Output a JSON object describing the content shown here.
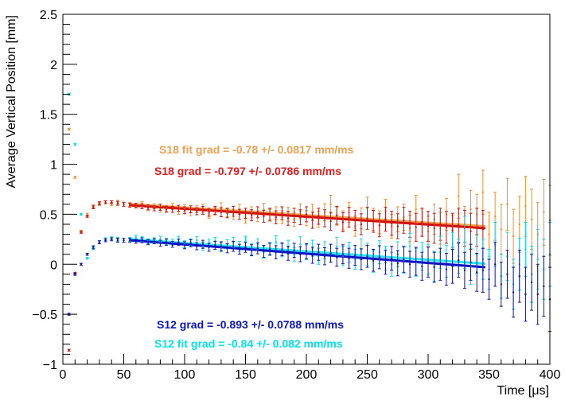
{
  "chart_data": {
    "type": "scatter",
    "title": "",
    "xlabel": "Time [μs]",
    "ylabel": "Average Vertical Position [mm]",
    "xlim": [
      0,
      400
    ],
    "ylim": [
      -1,
      2.5
    ],
    "x_ticks": [
      "0",
      "50",
      "100",
      "150",
      "200",
      "250",
      "300",
      "350",
      "400"
    ],
    "y_ticks": [
      "−1",
      "−0.5",
      "0",
      "0.5",
      "1",
      "1.5",
      "2",
      "2.5"
    ],
    "grid": false,
    "legend": "none",
    "annotations": [
      {
        "id": "s18fit",
        "text": "S18 fit grad = -0.78 +/- 0.0817 mm/ms",
        "color": "#f0a050"
      },
      {
        "id": "s18",
        "text": "S18 grad = -0.797 +/- 0.0786 mm/ms",
        "color": "#e41a1c"
      },
      {
        "id": "s12",
        "text": "S12 grad = -0.893 +/- 0.0788 mm/ms",
        "color": "#0a16c8"
      },
      {
        "id": "s12fit",
        "text": "S12 fit grad = -0.84 +/- 0.082 mm/ms",
        "color": "#00e5ee"
      }
    ],
    "series": [
      {
        "id": "s18fit",
        "color": "#f09030",
        "x": [
          5,
          10,
          15,
          20,
          25,
          30,
          35,
          40,
          45,
          50,
          55,
          60,
          65,
          70,
          75,
          80,
          85,
          90,
          95,
          100,
          105,
          110,
          115,
          120,
          125,
          130,
          135,
          140,
          145,
          150,
          155,
          160,
          165,
          170,
          175,
          180,
          185,
          190,
          195,
          200,
          205,
          210,
          215,
          220,
          225,
          230,
          235,
          240,
          245,
          250,
          255,
          260,
          265,
          270,
          275,
          280,
          285,
          290,
          295,
          300,
          305,
          310,
          315,
          320,
          325,
          330,
          335,
          340,
          345,
          350,
          355,
          360,
          365,
          370,
          375,
          380,
          385,
          390,
          395,
          400
        ],
        "y": [
          1.35,
          0.87,
          0.33,
          0.5,
          0.58,
          0.6,
          0.62,
          0.6,
          0.62,
          0.6,
          0.6,
          0.58,
          0.6,
          0.56,
          0.58,
          0.55,
          0.56,
          0.58,
          0.53,
          0.56,
          0.52,
          0.55,
          0.56,
          0.5,
          0.53,
          0.57,
          0.52,
          0.5,
          0.55,
          0.46,
          0.52,
          0.48,
          0.55,
          0.49,
          0.51,
          0.47,
          0.5,
          0.45,
          0.53,
          0.46,
          0.52,
          0.45,
          0.52,
          0.6,
          0.48,
          0.44,
          0.52,
          0.38,
          0.46,
          0.56,
          0.45,
          0.42,
          0.53,
          0.38,
          0.45,
          0.47,
          0.36,
          0.55,
          0.42,
          0.33,
          0.45,
          0.36,
          0.5,
          0.32,
          0.68,
          0.4,
          0.55,
          0.5,
          0.72,
          0.3,
          0.48,
          0.35,
          0.6,
          0.28,
          0.4,
          0.58,
          0.45,
          0.3,
          0.52,
          0.44
        ],
        "err": [
          0.01,
          0.01,
          0.01,
          0.01,
          0.015,
          0.015,
          0.015,
          0.015,
          0.02,
          0.02,
          0.02,
          0.02,
          0.025,
          0.025,
          0.025,
          0.03,
          0.03,
          0.03,
          0.03,
          0.035,
          0.035,
          0.035,
          0.04,
          0.04,
          0.04,
          0.045,
          0.045,
          0.05,
          0.05,
          0.05,
          0.055,
          0.055,
          0.06,
          0.06,
          0.065,
          0.065,
          0.07,
          0.07,
          0.075,
          0.075,
          0.08,
          0.08,
          0.085,
          0.09,
          0.09,
          0.095,
          0.1,
          0.1,
          0.105,
          0.11,
          0.11,
          0.115,
          0.12,
          0.12,
          0.125,
          0.13,
          0.13,
          0.14,
          0.14,
          0.15,
          0.15,
          0.16,
          0.16,
          0.17,
          0.22,
          0.18,
          0.19,
          0.2,
          0.22,
          0.22,
          0.24,
          0.25,
          0.26,
          0.27,
          0.28,
          0.3,
          0.3,
          0.32,
          0.33,
          0.35
        ]
      },
      {
        "id": "s18",
        "color": "#d01010",
        "x": [
          5,
          10,
          15,
          20,
          25,
          30,
          35,
          40,
          45,
          50,
          55,
          60,
          65,
          70,
          75,
          80,
          85,
          90,
          95,
          100,
          105,
          110,
          115,
          120,
          125,
          130,
          135,
          140,
          145,
          150,
          155,
          160,
          165,
          170,
          175,
          180,
          185,
          190,
          195,
          200,
          205,
          210,
          215,
          220,
          225,
          230,
          235,
          240,
          245,
          250,
          255,
          260,
          265,
          270,
          275,
          280,
          285,
          290,
          295,
          300,
          305,
          310,
          315,
          320,
          325,
          330,
          335,
          340,
          345
        ],
        "y": [
          -0.86,
          -0.09,
          0.32,
          0.48,
          0.57,
          0.61,
          0.62,
          0.62,
          0.61,
          0.6,
          0.59,
          0.59,
          0.58,
          0.57,
          0.56,
          0.57,
          0.55,
          0.55,
          0.56,
          0.54,
          0.55,
          0.53,
          0.54,
          0.52,
          0.54,
          0.52,
          0.51,
          0.53,
          0.5,
          0.51,
          0.49,
          0.52,
          0.48,
          0.5,
          0.47,
          0.51,
          0.46,
          0.49,
          0.47,
          0.5,
          0.44,
          0.48,
          0.46,
          0.43,
          0.49,
          0.42,
          0.47,
          0.44,
          0.4,
          0.46,
          0.43,
          0.39,
          0.45,
          0.41,
          0.38,
          0.44,
          0.4,
          0.37,
          0.42,
          0.38,
          0.36,
          0.4,
          0.37,
          0.34,
          0.39,
          0.36,
          0.33,
          0.37,
          0.35
        ],
        "err": [
          0.01,
          0.01,
          0.01,
          0.01,
          0.015,
          0.015,
          0.015,
          0.015,
          0.02,
          0.02,
          0.02,
          0.02,
          0.025,
          0.025,
          0.025,
          0.03,
          0.03,
          0.03,
          0.03,
          0.035,
          0.035,
          0.035,
          0.04,
          0.04,
          0.04,
          0.045,
          0.045,
          0.05,
          0.05,
          0.05,
          0.055,
          0.055,
          0.06,
          0.06,
          0.065,
          0.065,
          0.07,
          0.07,
          0.075,
          0.075,
          0.08,
          0.08,
          0.085,
          0.09,
          0.09,
          0.095,
          0.1,
          0.1,
          0.105,
          0.11,
          0.11,
          0.115,
          0.12,
          0.12,
          0.125,
          0.13,
          0.13,
          0.14,
          0.14,
          0.15,
          0.15,
          0.16,
          0.16,
          0.17,
          0.17,
          0.18,
          0.18,
          0.19,
          0.19
        ]
      },
      {
        "id": "s12fit",
        "color": "#00d8e8",
        "x": [
          5,
          10,
          15,
          20,
          25,
          30,
          35,
          40,
          45,
          50,
          55,
          60,
          65,
          70,
          75,
          80,
          85,
          90,
          95,
          100,
          105,
          110,
          115,
          120,
          125,
          130,
          135,
          140,
          145,
          150,
          155,
          160,
          165,
          170,
          175,
          180,
          185,
          190,
          195,
          200,
          205,
          210,
          215,
          220,
          225,
          230,
          235,
          240,
          245,
          250,
          255,
          260,
          265,
          270,
          275,
          280,
          285,
          290,
          295,
          300,
          305,
          310,
          315,
          320,
          325,
          330,
          335,
          340,
          345,
          350,
          355,
          360,
          365,
          370,
          375,
          380,
          385,
          390,
          395,
          400
        ],
        "y": [
          1.7,
          1.2,
          0.5,
          0.06,
          0.16,
          0.22,
          0.25,
          0.26,
          0.25,
          0.24,
          0.25,
          0.27,
          0.25,
          0.23,
          0.24,
          0.25,
          0.23,
          0.22,
          0.25,
          0.2,
          0.22,
          0.24,
          0.18,
          0.21,
          0.23,
          0.17,
          0.2,
          0.22,
          0.18,
          0.23,
          0.15,
          0.2,
          0.12,
          0.16,
          0.22,
          0.14,
          0.17,
          0.1,
          0.2,
          0.12,
          0.16,
          0.08,
          0.14,
          0.11,
          0.18,
          0.08,
          0.12,
          0.05,
          0.15,
          0.1,
          0.03,
          0.12,
          0.06,
          0.0,
          0.1,
          0.04,
          0.18,
          0.02,
          0.08,
          0.05,
          -0.02,
          0.12,
          0.03,
          0.15,
          0.08,
          0.22,
          -0.02,
          0.1,
          0.05,
          -0.05,
          0.2,
          -0.12,
          0.08,
          -0.2,
          0.0,
          0.15,
          -0.1,
          0.05,
          -0.05,
          0.1
        ],
        "err": [
          0.01,
          0.01,
          0.01,
          0.01,
          0.015,
          0.015,
          0.015,
          0.015,
          0.02,
          0.02,
          0.02,
          0.02,
          0.025,
          0.025,
          0.025,
          0.03,
          0.03,
          0.03,
          0.03,
          0.035,
          0.035,
          0.035,
          0.04,
          0.04,
          0.04,
          0.045,
          0.045,
          0.05,
          0.05,
          0.05,
          0.055,
          0.055,
          0.06,
          0.06,
          0.065,
          0.065,
          0.07,
          0.07,
          0.075,
          0.075,
          0.08,
          0.08,
          0.085,
          0.09,
          0.09,
          0.095,
          0.1,
          0.1,
          0.105,
          0.11,
          0.11,
          0.115,
          0.12,
          0.12,
          0.125,
          0.13,
          0.13,
          0.14,
          0.14,
          0.15,
          0.15,
          0.16,
          0.16,
          0.17,
          0.17,
          0.26,
          0.18,
          0.19,
          0.2,
          0.2,
          0.22,
          0.22,
          0.24,
          0.25,
          0.26,
          0.27,
          0.28,
          0.3,
          0.3,
          0.32
        ]
      },
      {
        "id": "s12",
        "color": "#1010b0",
        "x": [
          5,
          10,
          15,
          20,
          25,
          30,
          35,
          40,
          45,
          50,
          55,
          60,
          65,
          70,
          75,
          80,
          85,
          90,
          95,
          100,
          105,
          110,
          115,
          120,
          125,
          130,
          135,
          140,
          145,
          150,
          155,
          160,
          165,
          170,
          175,
          180,
          185,
          190,
          195,
          200,
          205,
          210,
          215,
          220,
          225,
          230,
          235,
          240,
          245,
          250,
          255,
          260,
          265,
          270,
          275,
          280,
          285,
          290,
          295,
          300,
          305,
          310,
          315,
          320,
          325,
          330,
          335,
          340,
          345,
          350,
          355,
          360,
          365,
          370,
          375,
          380,
          385,
          390,
          395,
          400
        ],
        "y": [
          -0.5,
          -0.1,
          0.0,
          0.1,
          0.17,
          0.22,
          0.24,
          0.25,
          0.24,
          0.24,
          0.24,
          0.23,
          0.24,
          0.22,
          0.23,
          0.21,
          0.22,
          0.2,
          0.22,
          0.19,
          0.21,
          0.18,
          0.2,
          0.17,
          0.19,
          0.18,
          0.16,
          0.18,
          0.15,
          0.17,
          0.14,
          0.16,
          0.13,
          0.15,
          0.12,
          0.15,
          0.11,
          0.14,
          0.1,
          0.13,
          0.09,
          0.12,
          0.08,
          0.11,
          0.07,
          0.1,
          0.06,
          0.09,
          0.05,
          0.08,
          0.04,
          0.07,
          0.02,
          0.06,
          0.01,
          0.05,
          0.0,
          0.03,
          -0.02,
          0.02,
          -0.03,
          0.0,
          -0.05,
          -0.02,
          0.04,
          -0.06,
          0.02,
          -0.08,
          -0.06,
          -0.15,
          0.0,
          -0.2,
          -0.1,
          -0.28,
          -0.12,
          -0.3,
          -0.18,
          -0.3,
          -0.22,
          -0.35
        ],
        "err": [
          0.01,
          0.01,
          0.01,
          0.01,
          0.015,
          0.015,
          0.015,
          0.015,
          0.02,
          0.02,
          0.02,
          0.02,
          0.025,
          0.025,
          0.025,
          0.03,
          0.03,
          0.03,
          0.03,
          0.035,
          0.035,
          0.035,
          0.04,
          0.04,
          0.04,
          0.045,
          0.045,
          0.05,
          0.05,
          0.05,
          0.055,
          0.055,
          0.06,
          0.06,
          0.065,
          0.065,
          0.07,
          0.07,
          0.075,
          0.075,
          0.08,
          0.08,
          0.085,
          0.09,
          0.09,
          0.095,
          0.1,
          0.1,
          0.105,
          0.11,
          0.11,
          0.115,
          0.12,
          0.12,
          0.125,
          0.13,
          0.13,
          0.14,
          0.14,
          0.15,
          0.15,
          0.16,
          0.16,
          0.17,
          0.17,
          0.18,
          0.18,
          0.19,
          0.22,
          0.2,
          0.22,
          0.22,
          0.24,
          0.25,
          0.26,
          0.27,
          0.28,
          0.3,
          0.3,
          0.32
        ]
      }
    ],
    "fits": [
      {
        "id": "s18fit",
        "color": "#f0a050",
        "x": [
          55,
          347
        ],
        "y": [
          0.6,
          0.38
        ]
      },
      {
        "id": "s18",
        "color": "#d01010",
        "x": [
          55,
          347
        ],
        "y": [
          0.59,
          0.36
        ]
      },
      {
        "id": "s12fit",
        "color": "#20e8f0",
        "x": [
          55,
          347
        ],
        "y": [
          0.25,
          0.005
        ]
      },
      {
        "id": "s12",
        "color": "#1010c8",
        "x": [
          55,
          347
        ],
        "y": [
          0.24,
          -0.03
        ]
      }
    ]
  }
}
